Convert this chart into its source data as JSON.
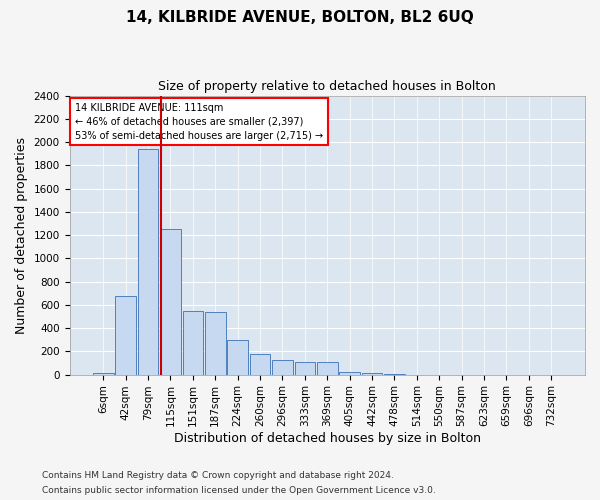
{
  "title": "14, KILBRIDE AVENUE, BOLTON, BL2 6UQ",
  "subtitle": "Size of property relative to detached houses in Bolton",
  "xlabel": "Distribution of detached houses by size in Bolton",
  "ylabel": "Number of detached properties",
  "annotation_line1": "14 KILBRIDE AVENUE: 111sqm",
  "annotation_line2": "← 46% of detached houses are smaller (2,397)",
  "annotation_line3": "53% of semi-detached houses are larger (2,715) →",
  "footer1": "Contains HM Land Registry data © Crown copyright and database right 2024.",
  "footer2": "Contains public sector information licensed under the Open Government Licence v3.0.",
  "bar_labels": [
    "6sqm",
    "42sqm",
    "79sqm",
    "115sqm",
    "151sqm",
    "187sqm",
    "224sqm",
    "260sqm",
    "296sqm",
    "333sqm",
    "369sqm",
    "405sqm",
    "442sqm",
    "478sqm",
    "514sqm",
    "550sqm",
    "587sqm",
    "623sqm",
    "659sqm",
    "696sqm",
    "732sqm"
  ],
  "bar_values": [
    15,
    680,
    1940,
    1250,
    550,
    540,
    300,
    175,
    125,
    105,
    110,
    25,
    15,
    5,
    0,
    0,
    0,
    0,
    0,
    0,
    0
  ],
  "bar_color": "#c6d9f0",
  "bar_edge_color": "#4f81bd",
  "vline_color": "#cc0000",
  "vline_x_idx": 2.58,
  "ylim_max": 2400,
  "ytick_step": 200,
  "bg_color": "#dce6f1",
  "grid_color": "#ffffff",
  "title_fontsize": 11,
  "subtitle_fontsize": 9,
  "axis_label_fontsize": 9,
  "tick_fontsize": 7.5,
  "ann_fontsize": 7,
  "footer_fontsize": 6.5
}
